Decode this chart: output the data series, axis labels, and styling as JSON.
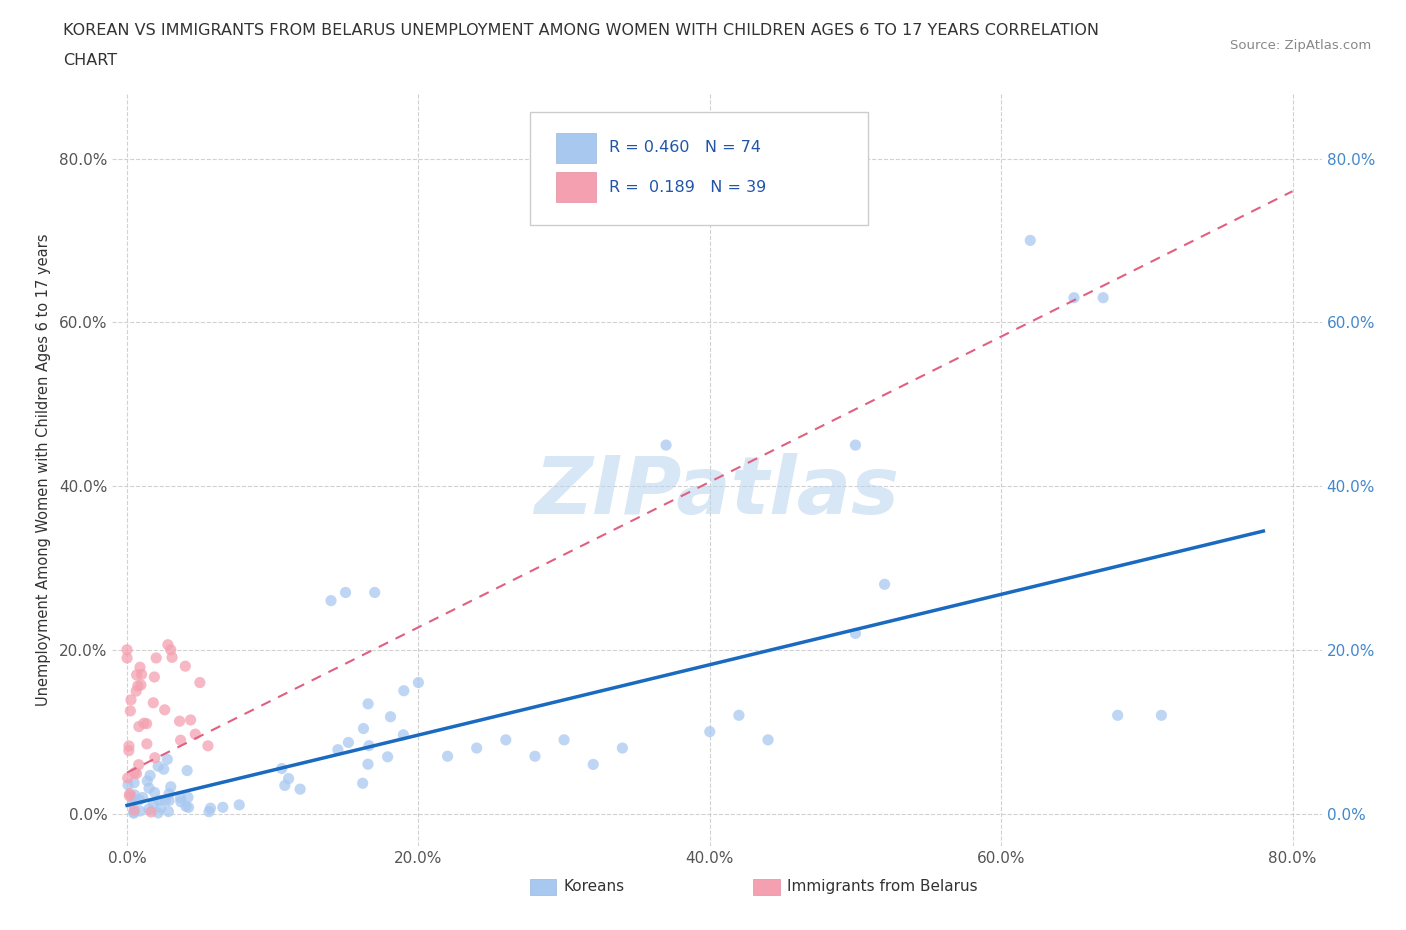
{
  "title_line1": "KOREAN VS IMMIGRANTS FROM BELARUS UNEMPLOYMENT AMONG WOMEN WITH CHILDREN AGES 6 TO 17 YEARS CORRELATION",
  "title_line2": "CHART",
  "source": "Source: ZipAtlas.com",
  "ylabel": "Unemployment Among Women with Children Ages 6 to 17 years",
  "xlim": [
    -0.01,
    0.82
  ],
  "ylim": [
    -0.04,
    0.88
  ],
  "xticks": [
    0.0,
    0.2,
    0.4,
    0.6,
    0.8
  ],
  "yticks": [
    0.0,
    0.2,
    0.4,
    0.6,
    0.8
  ],
  "xtick_labels": [
    "0.0%",
    "20.0%",
    "40.0%",
    "60.0%",
    "80.0%"
  ],
  "ytick_labels": [
    "0.0%",
    "20.0%",
    "40.0%",
    "60.0%",
    "80.0%"
  ],
  "korean_color": "#a8c8f0",
  "belarus_color": "#f4a0b0",
  "trendline_korean_color": "#1a6abf",
  "trendline_belarus_color": "#e06080",
  "watermark": "ZIPatlas",
  "legend_r_korean": "0.460",
  "legend_n_korean": "74",
  "legend_r_belarus": "0.189",
  "legend_n_belarus": "39",
  "korean_trendline_x0": 0.0,
  "korean_trendline_y0": 0.01,
  "korean_trendline_x1": 0.78,
  "korean_trendline_y1": 0.345,
  "belarus_trendline_x0": 0.0,
  "belarus_trendline_y0": 0.05,
  "belarus_trendline_x1": 0.8,
  "belarus_trendline_y1": 0.76
}
